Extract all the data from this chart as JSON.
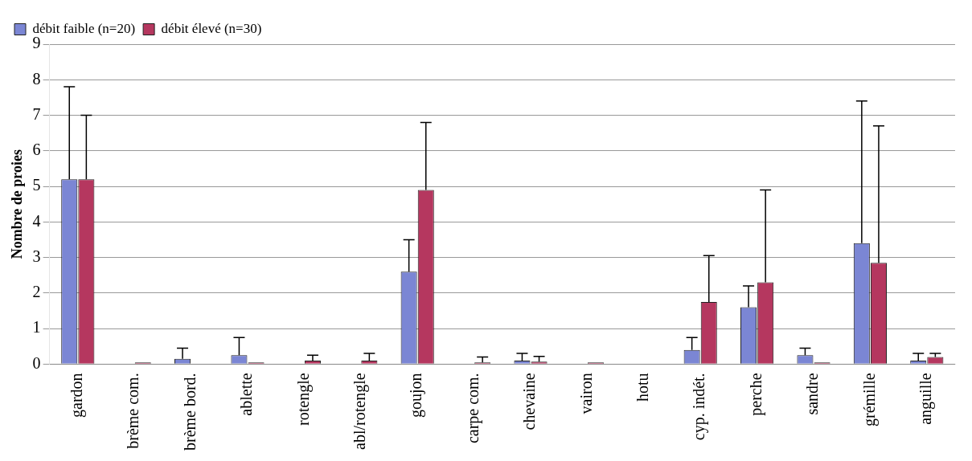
{
  "chart_data": {
    "type": "bar",
    "ylabel": "Nombre de proies",
    "categories": [
      "gardon",
      "brème com.",
      "brème bord.",
      "ablette",
      "rotengle",
      "abl/rotengle",
      "goujon",
      "carpe com.",
      "chevaine",
      "vairon",
      "hotu",
      "cyp. indét.",
      "perche",
      "sandre",
      "grémille",
      "anguille"
    ],
    "series": [
      {
        "name": "débit faible (n=20)",
        "color": "#7b86d4",
        "values": [
          5.2,
          0,
          0.15,
          0.25,
          0,
          0,
          2.6,
          0,
          0.1,
          0,
          0,
          0.4,
          1.6,
          0.25,
          3.4,
          0.1
        ],
        "errors": [
          [
            5.2,
            7.8
          ],
          null,
          [
            0.15,
            0.45
          ],
          [
            0.25,
            0.75
          ],
          null,
          null,
          [
            2.6,
            3.5
          ],
          null,
          [
            0.1,
            0.3
          ],
          null,
          null,
          [
            0.4,
            0.75
          ],
          [
            1.6,
            2.2
          ],
          [
            0.25,
            0.45
          ],
          [
            3.4,
            7.4
          ],
          [
            0.1,
            0.3
          ]
        ]
      },
      {
        "name": "débit élevé (n=30)",
        "color": "#b5375f",
        "values": [
          5.2,
          0.05,
          0,
          0.05,
          0.1,
          0.1,
          4.9,
          0.05,
          0.07,
          0.05,
          0,
          1.75,
          2.3,
          0.05,
          2.85,
          0.2
        ],
        "errors": [
          [
            5.2,
            7
          ],
          null,
          null,
          null,
          [
            0.1,
            0.25
          ],
          [
            0.1,
            0.3
          ],
          [
            4.9,
            6.8
          ],
          [
            0.05,
            0.2
          ],
          [
            0.07,
            0.22
          ],
          null,
          null,
          [
            1.75,
            3.05
          ],
          [
            2.3,
            4.9
          ],
          null,
          [
            2.85,
            6.7
          ],
          [
            0.2,
            0.3
          ]
        ]
      }
    ],
    "ylim": [
      0,
      9
    ],
    "yticks": [
      0,
      1,
      2,
      3,
      4,
      5,
      6,
      7,
      8,
      9
    ],
    "grid": "y",
    "legend": "top left"
  }
}
